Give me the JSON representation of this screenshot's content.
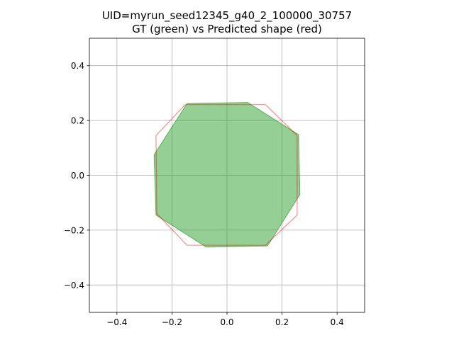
{
  "chart_data": {
    "type": "area",
    "title_line1": "UID=myrun_seed12345_g40_2_100000_30757",
    "title_line2": "GT (green) vs Predicted shape (red)",
    "xlabel": "",
    "ylabel": "",
    "xlim": [
      -0.5,
      0.5
    ],
    "ylim": [
      -0.5,
      0.5
    ],
    "grid": true,
    "x_ticks": [
      -0.4,
      -0.2,
      0.0,
      0.2,
      0.4
    ],
    "y_ticks": [
      -0.4,
      -0.2,
      0.0,
      0.2,
      0.4
    ],
    "x_tick_labels": [
      "−0.4",
      "−0.2",
      "0.0",
      "0.2",
      "0.4"
    ],
    "y_tick_labels": [
      "−0.4",
      "−0.2",
      "0.0",
      "0.2",
      "0.4"
    ],
    "series": [
      {
        "name": "GT",
        "kind": "filled-polygon",
        "color": "#2ca02c",
        "points": [
          [
            -0.145,
            0.262
          ],
          [
            0.075,
            0.266
          ],
          [
            0.26,
            0.148
          ],
          [
            0.265,
            -0.07
          ],
          [
            0.147,
            -0.258
          ],
          [
            -0.075,
            -0.262
          ],
          [
            -0.258,
            -0.145
          ],
          [
            -0.265,
            0.075
          ]
        ]
      },
      {
        "name": "Predicted",
        "kind": "outline-polygon",
        "color": "#ff0000",
        "points": [
          [
            -0.1,
            0.258
          ],
          [
            0.14,
            0.258
          ],
          [
            0.255,
            0.145
          ],
          [
            0.255,
            -0.145
          ],
          [
            0.14,
            -0.255
          ],
          [
            -0.145,
            -0.255
          ],
          [
            -0.255,
            -0.14
          ],
          [
            -0.258,
            0.145
          ],
          [
            -0.152,
            0.258
          ]
        ]
      }
    ]
  }
}
